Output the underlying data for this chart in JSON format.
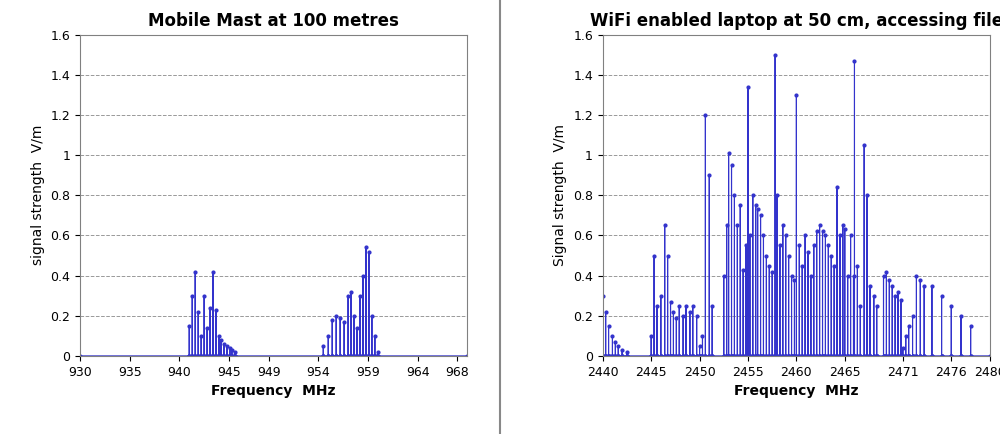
{
  "chart1": {
    "title": "Mobile Mast at 100 metres",
    "xlabel": "Frequency  MHz",
    "ylabel": "signal strength  V/m",
    "xlim": [
      930,
      969
    ],
    "ylim": [
      0,
      1.6
    ],
    "xticks": [
      930,
      935,
      940,
      945,
      949,
      954,
      959,
      964,
      968
    ],
    "yticks": [
      0,
      0.2,
      0.4,
      0.6,
      0.8,
      1.0,
      1.2,
      1.4,
      1.6
    ],
    "color": "#3333cc",
    "peaks1": {
      "freqs": [
        941.0,
        941.3,
        941.6,
        941.9,
        942.2,
        942.5,
        942.8,
        943.1,
        943.4,
        943.7,
        944.0,
        944.2,
        944.5,
        944.8,
        945.1,
        945.3,
        945.6
      ],
      "vals": [
        0.15,
        0.3,
        0.42,
        0.22,
        0.1,
        0.3,
        0.14,
        0.24,
        0.42,
        0.23,
        0.1,
        0.08,
        0.06,
        0.05,
        0.04,
        0.03,
        0.02
      ]
    },
    "peaks2": {
      "freqs": [
        954.5,
        955.0,
        955.4,
        955.8,
        956.2,
        956.6,
        957.0,
        957.3,
        957.6,
        957.9,
        958.2,
        958.5,
        958.8,
        959.1,
        959.4,
        959.7,
        960.0
      ],
      "vals": [
        0.05,
        0.1,
        0.18,
        0.2,
        0.19,
        0.17,
        0.3,
        0.32,
        0.2,
        0.14,
        0.3,
        0.4,
        0.54,
        0.52,
        0.2,
        0.1,
        0.02
      ]
    }
  },
  "chart2": {
    "title": "WiFi enabled laptop at 50 cm, accessing file",
    "xlabel": "Frequency  MHz",
    "ylabel": "Signal strength  V/m",
    "xlim": [
      2440,
      2480
    ],
    "ylim": [
      0,
      1.6
    ],
    "xticks": [
      2440,
      2445,
      2450,
      2455,
      2460,
      2465,
      2471,
      2476,
      2480
    ],
    "yticks": [
      0,
      0.2,
      0.4,
      0.6,
      0.8,
      1.0,
      1.2,
      1.4,
      1.6
    ],
    "color": "#3333cc",
    "peaks": {
      "freqs": [
        2440.0,
        2440.3,
        2440.6,
        2441.0,
        2441.3,
        2441.6,
        2442.0,
        2442.5,
        2445.0,
        2445.3,
        2445.6,
        2446.0,
        2446.4,
        2446.7,
        2447.0,
        2447.3,
        2447.6,
        2447.9,
        2448.3,
        2448.6,
        2449.0,
        2449.3,
        2449.7,
        2450.0,
        2450.3,
        2450.6,
        2451.0,
        2451.3,
        2452.5,
        2452.8,
        2453.0,
        2453.3,
        2453.6,
        2453.9,
        2454.2,
        2454.5,
        2454.8,
        2455.0,
        2455.2,
        2455.5,
        2455.8,
        2456.0,
        2456.3,
        2456.6,
        2456.9,
        2457.2,
        2457.5,
        2457.8,
        2458.0,
        2458.3,
        2458.6,
        2458.9,
        2459.2,
        2459.5,
        2459.8,
        2460.0,
        2460.3,
        2460.6,
        2460.9,
        2461.2,
        2461.5,
        2461.8,
        2462.1,
        2462.4,
        2462.7,
        2463.0,
        2463.3,
        2463.6,
        2463.9,
        2464.2,
        2464.5,
        2464.8,
        2465.0,
        2465.3,
        2465.6,
        2465.9,
        2466.0,
        2466.3,
        2466.6,
        2467.0,
        2467.3,
        2467.6,
        2468.0,
        2468.3,
        2469.0,
        2469.3,
        2469.6,
        2469.9,
        2470.2,
        2470.5,
        2470.8,
        2471.0,
        2471.3,
        2471.6,
        2472.0,
        2472.4,
        2472.8,
        2473.2,
        2474.0,
        2475.0,
        2476.0,
        2477.0,
        2478.0
      ],
      "vals": [
        0.3,
        0.22,
        0.15,
        0.1,
        0.07,
        0.05,
        0.03,
        0.02,
        0.1,
        0.5,
        0.25,
        0.3,
        0.65,
        0.5,
        0.27,
        0.22,
        0.19,
        0.25,
        0.2,
        0.25,
        0.22,
        0.25,
        0.2,
        0.05,
        0.1,
        1.2,
        0.9,
        0.25,
        0.4,
        0.65,
        1.01,
        0.95,
        0.8,
        0.65,
        0.75,
        0.43,
        0.55,
        1.34,
        0.6,
        0.8,
        0.75,
        0.73,
        0.7,
        0.6,
        0.5,
        0.45,
        0.42,
        1.5,
        0.8,
        0.55,
        0.65,
        0.6,
        0.5,
        0.4,
        0.38,
        1.3,
        0.55,
        0.45,
        0.6,
        0.52,
        0.4,
        0.55,
        0.62,
        0.65,
        0.62,
        0.6,
        0.55,
        0.5,
        0.45,
        0.84,
        0.6,
        0.65,
        0.63,
        0.4,
        0.6,
        0.4,
        1.47,
        0.45,
        0.25,
        1.05,
        0.8,
        0.35,
        0.3,
        0.25,
        0.4,
        0.42,
        0.38,
        0.35,
        0.3,
        0.32,
        0.28,
        0.04,
        0.1,
        0.15,
        0.2,
        0.4,
        0.38,
        0.35,
        0.35,
        0.3,
        0.25,
        0.2,
        0.15
      ]
    }
  },
  "divider_color": "#888888",
  "bg_color": "#ffffff",
  "line_color": "#3333cc",
  "title_fontsize": 12,
  "label_fontsize": 10,
  "tick_fontsize": 9
}
